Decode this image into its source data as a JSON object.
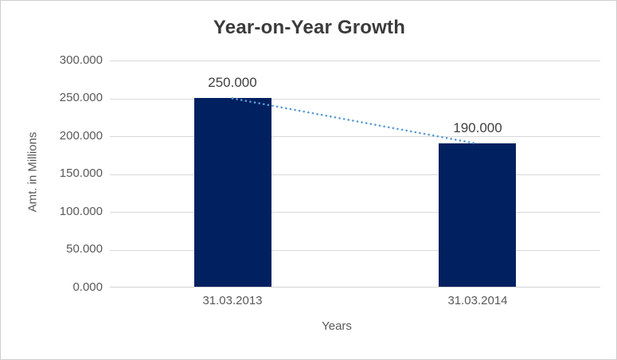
{
  "chart_data": {
    "type": "bar",
    "title": "Year-on-Year Growth",
    "categories": [
      "31.03.2013",
      "31.03.2014"
    ],
    "values": [
      250,
      190
    ],
    "data_labels": [
      "250.000",
      "190.000"
    ],
    "xlabel": "Years",
    "ylabel": "Amt. in Millions",
    "ylim": [
      0,
      300
    ],
    "ytick_interval": 50,
    "yticks": [
      "300.000",
      "250.000",
      "200.000",
      "150.000",
      "100.000",
      "50.000",
      "0.000"
    ],
    "grid": true,
    "legend_position": "none",
    "bar_color": "#002060",
    "gridline_color": "#d9d9d9",
    "trendline": {
      "style": "dotted",
      "color": "#5b9bd5",
      "from_value": 250,
      "to_value": 190
    }
  }
}
